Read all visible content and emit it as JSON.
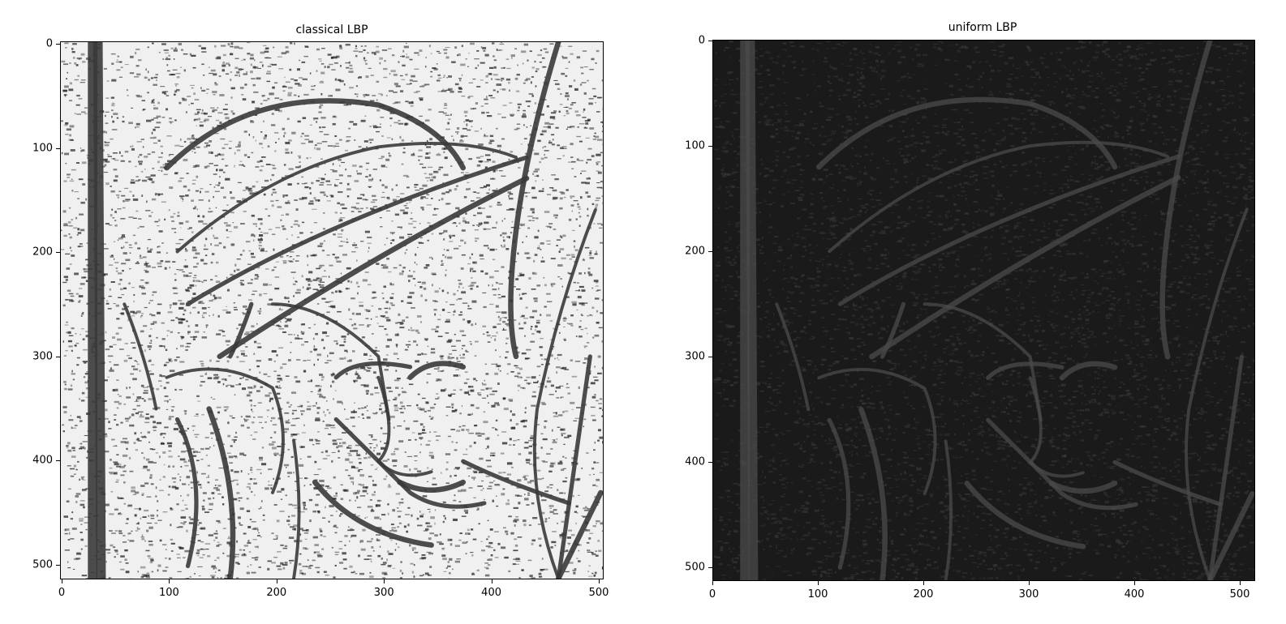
{
  "panels": [
    {
      "id": "classical",
      "title": "classical LBP",
      "x_ticks": [
        "0",
        "100",
        "200",
        "300",
        "400",
        "500"
      ],
      "y_ticks": [
        "0",
        "100",
        "200",
        "300",
        "400",
        "500"
      ],
      "image_tone": "light",
      "colors": {
        "base": "#f0f0f0",
        "texture": "#222222",
        "edge": "#3a3a3a"
      }
    },
    {
      "id": "uniform",
      "title": "uniform LBP",
      "x_ticks": [
        "0",
        "100",
        "200",
        "300",
        "400",
        "500"
      ],
      "y_ticks": [
        "0",
        "100",
        "200",
        "300",
        "400",
        "500"
      ],
      "image_tone": "dark",
      "colors": {
        "base": "#1a1a1a",
        "texture": "#3c3c3c",
        "edge": "#4a4a4a"
      }
    }
  ]
}
